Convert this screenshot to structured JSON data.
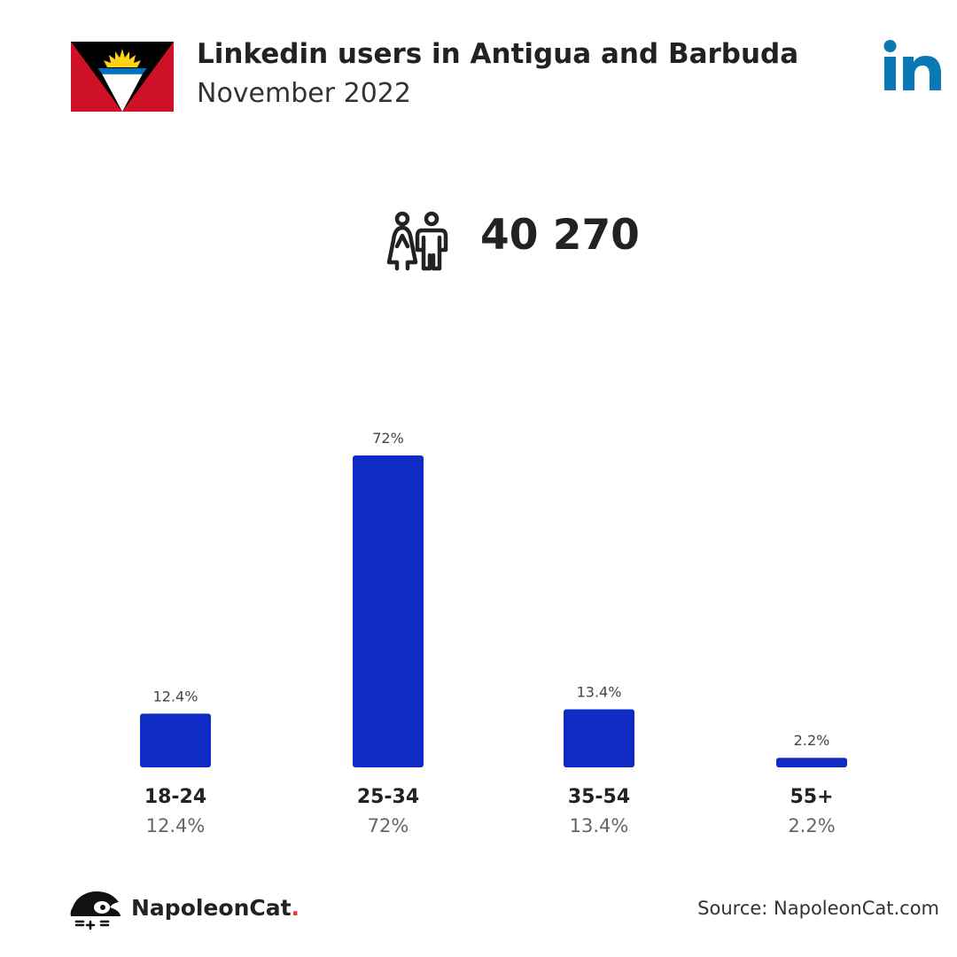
{
  "header": {
    "title": "Linkedin users in Antigua and Barbuda",
    "subtitle": "November 2022"
  },
  "total_users": "40 270",
  "chart_data": {
    "type": "bar",
    "categories": [
      "18-24",
      "25-34",
      "35-54",
      "55+"
    ],
    "values": [
      12.4,
      72,
      13.4,
      2.2
    ],
    "value_labels": [
      "12.4%",
      "72%",
      "13.4%",
      "2.2%"
    ],
    "ylim": [
      0,
      72
    ],
    "grid": false,
    "bar_color": "#0f2bc4"
  },
  "footer": {
    "brand": "NapoleonCat",
    "brand_dot": ".",
    "source": "Source: NapoleonCat.com"
  },
  "colors": {
    "linkedin_blue": "#0a78b5",
    "flag_red": "#ce1126",
    "flag_black": "#000000",
    "flag_blue": "#0072c6",
    "flag_gold": "#fcd116"
  },
  "icons": {
    "flag": "antigua-barbuda-flag-icon",
    "linkedin": "linkedin-logo-icon",
    "users": "users-icon",
    "brand": "napoleoncat-logo-icon"
  }
}
